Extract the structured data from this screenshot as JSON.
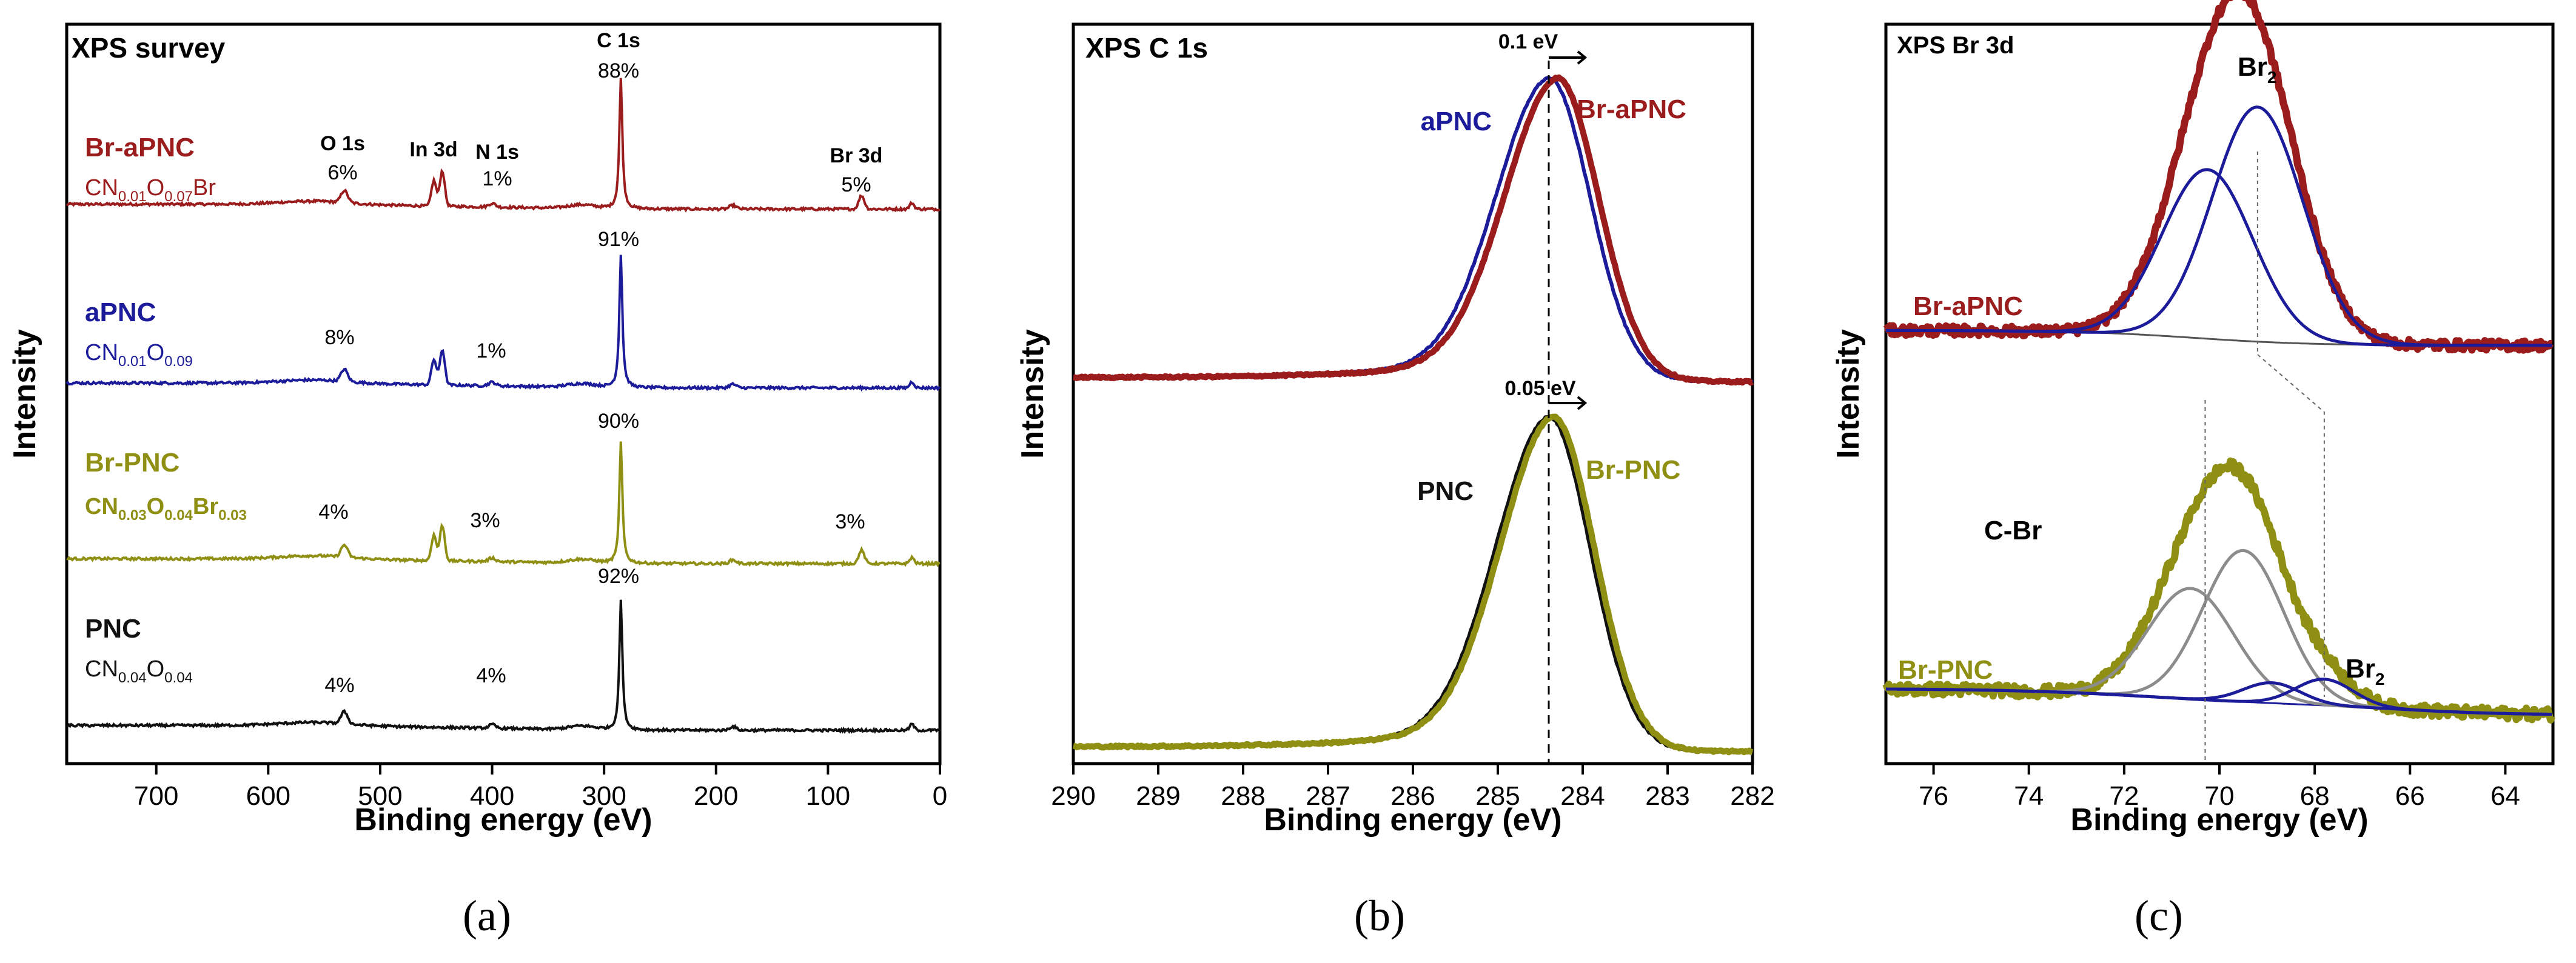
{
  "chart_data": [
    {
      "panel": "(a)",
      "type": "line",
      "title": "XPS survey",
      "xlabel": "Binding energy (eV)",
      "ylabel": "Intensity",
      "xlim": [
        780,
        0
      ],
      "xticks": [
        700,
        600,
        500,
        400,
        300,
        200,
        100,
        0
      ],
      "series": [
        {
          "name": "Br-aPNC",
          "color": "#9b1c1c",
          "formula": "CN0.01O0.07Br",
          "offset": 3,
          "peaks": [
            {
              "label": "C 1s",
              "x": 285,
              "pct": "88%"
            },
            {
              "label": "O 1s",
              "x": 532,
              "pct": "6%"
            },
            {
              "label": "In 3d",
              "x": 448
            },
            {
              "label": "N 1s",
              "x": 400,
              "pct": "1%"
            },
            {
              "label": "Br 3d",
              "x": 70,
              "pct": "5%"
            }
          ]
        },
        {
          "name": "aPNC",
          "color": "#1c1c9b",
          "formula": "CN0.01O0.09",
          "offset": 2,
          "peaks": [
            {
              "label": "C 1s",
              "x": 285,
              "pct": "91%"
            },
            {
              "label": "O 1s",
              "x": 532,
              "pct": "8%"
            },
            {
              "label": "N 1s",
              "x": 400,
              "pct": "1%"
            }
          ]
        },
        {
          "name": "Br-PNC",
          "color": "#8f8f14",
          "formula": "CN0.03O0.04Br0.03",
          "offset": 1,
          "peaks": [
            {
              "label": "C 1s",
              "x": 285,
              "pct": "90%"
            },
            {
              "label": "O 1s",
              "x": 532,
              "pct": "4%"
            },
            {
              "label": "N 1s",
              "x": 400,
              "pct": "3%"
            },
            {
              "label": "Br 3d",
              "x": 70,
              "pct": "3%"
            }
          ]
        },
        {
          "name": "PNC",
          "color": "#111111",
          "formula": "CN0.04O0.04",
          "offset": 0,
          "peaks": [
            {
              "label": "C 1s",
              "x": 285,
              "pct": "92%"
            },
            {
              "label": "O 1s",
              "x": 532,
              "pct": "4%"
            },
            {
              "label": "N 1s",
              "x": 400,
              "pct": "4%"
            }
          ]
        }
      ]
    },
    {
      "panel": "(b)",
      "type": "line",
      "title": "XPS C 1s",
      "xlabel": "Binding energy (eV)",
      "ylabel": "Intensity",
      "xlim": [
        290,
        282
      ],
      "xticks": [
        290,
        289,
        288,
        287,
        286,
        285,
        284,
        283,
        282
      ],
      "reference_line": 284.4,
      "series": [
        {
          "name": "aPNC",
          "color": "#1c1c9b",
          "peak": 284.4,
          "group": "upper"
        },
        {
          "name": "Br-aPNC",
          "color": "#9b1c1c",
          "peak": 284.3,
          "group": "upper"
        },
        {
          "name": "PNC",
          "color": "#111111",
          "peak": 284.4,
          "group": "lower"
        },
        {
          "name": "Br-PNC",
          "color": "#8f8f14",
          "peak": 284.35,
          "group": "lower"
        }
      ],
      "shifts": [
        {
          "label": "0.1 eV",
          "group": "upper"
        },
        {
          "label": "0.05 eV",
          "group": "lower"
        }
      ]
    },
    {
      "panel": "(c)",
      "type": "line",
      "title": "XPS Br 3d",
      "xlabel": "Binding energy (eV)",
      "ylabel": "Intensity",
      "xlim": [
        77,
        63
      ],
      "xticks": [
        76,
        74,
        72,
        70,
        68,
        66,
        64
      ],
      "series": [
        {
          "name": "Br-aPNC",
          "color": "#9b1c1c",
          "group": "upper",
          "components": [
            {
              "name": "Br2",
              "center": 70.25,
              "color": "#1c1c9b"
            },
            {
              "name": "Br2",
              "center": 69.2,
              "color": "#1c1c9b"
            }
          ]
        },
        {
          "name": "Br-PNC",
          "color": "#8f8f14",
          "group": "lower",
          "components": [
            {
              "name": "C-Br",
              "center": 70.6,
              "color": "#8c8c8c"
            },
            {
              "name": "C-Br",
              "center": 69.5,
              "color": "#8c8c8c"
            },
            {
              "name": "Br2",
              "center": 68.9,
              "color": "#1c1c9b"
            },
            {
              "name": "Br2",
              "center": 67.8,
              "color": "#1c1c9b"
            }
          ]
        }
      ],
      "labels": [
        "Br2",
        "Br2",
        "C-Br"
      ]
    }
  ],
  "captions": [
    "(a)",
    "(b)",
    "(c)"
  ],
  "text": {
    "a_title": "XPS survey",
    "b_title": "XPS C 1s",
    "c_title": "XPS Br 3d",
    "xlabel": "Binding energy (eV)",
    "ylabel": "Intensity",
    "c1s": "C 1s",
    "o1s": "O 1s",
    "in3d": "In 3d",
    "n1s": "N 1s",
    "br3d": "Br 3d",
    "a_pct_braPNC_c": "88%",
    "a_pct_braPNC_o": "6%",
    "a_pct_braPNC_n": "1%",
    "a_pct_braPNC_br": "5%",
    "a_pct_aPNC_c": "91%",
    "a_pct_aPNC_o": "8%",
    "a_pct_aPNC_n": "1%",
    "a_pct_brPNC_c": "90%",
    "a_pct_brPNC_o": "4%",
    "a_pct_brPNC_n": "3%",
    "a_pct_brPNC_br": "3%",
    "a_pct_PNC_c": "92%",
    "a_pct_PNC_o": "4%",
    "a_pct_PNC_n": "4%",
    "name_braPNC": "Br-aPNC",
    "name_aPNC": "aPNC",
    "name_brPNC": "Br-PNC",
    "name_PNC": "PNC",
    "cn": "CN",
    "o": "O",
    "br": "Br",
    "s001": "0.01",
    "s003": "0.03",
    "s004": "0.04",
    "s007": "0.07",
    "s009": "0.09",
    "shift_upper": "0.1 eV",
    "shift_lower": "0.05 eV",
    "br2_base": "Br",
    "br2_sub": "2",
    "cbr": "C-Br"
  }
}
